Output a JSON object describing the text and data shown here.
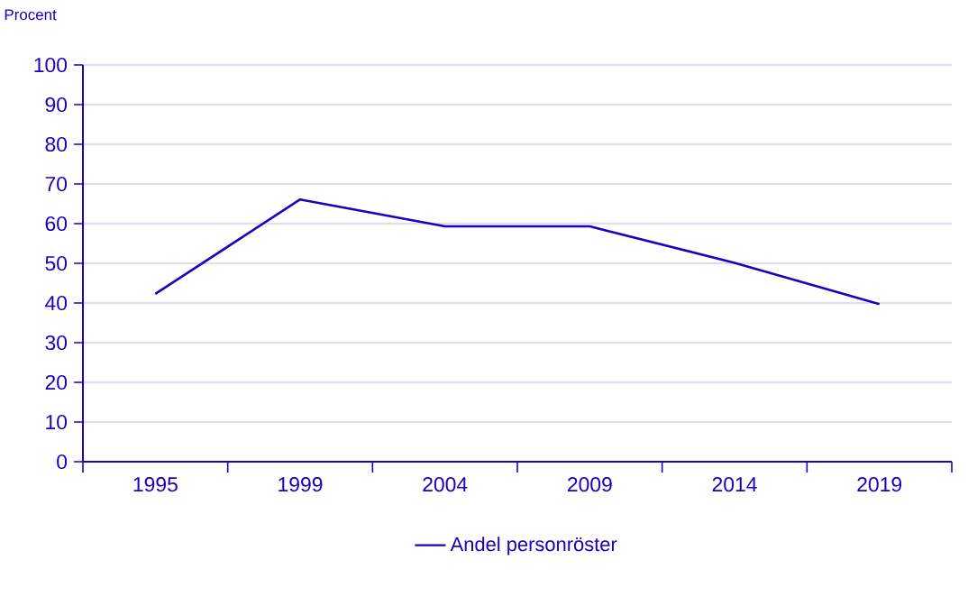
{
  "chart_data": {
    "type": "line",
    "ylabel": "Procent",
    "categories": [
      "1995",
      "1999",
      "2004",
      "2009",
      "2014",
      "2019"
    ],
    "series": [
      {
        "name": "Andel personröster",
        "color": "#1e00be",
        "values": [
          42.3,
          66.1,
          59.3,
          59.3,
          50.1,
          39.7
        ]
      }
    ],
    "ylim": [
      0,
      100
    ],
    "yticks": [
      0,
      10,
      20,
      30,
      40,
      50,
      60,
      70,
      80,
      90,
      100
    ],
    "grid": "y",
    "legend": "bottom",
    "marker": "none",
    "line_style": "solid"
  }
}
